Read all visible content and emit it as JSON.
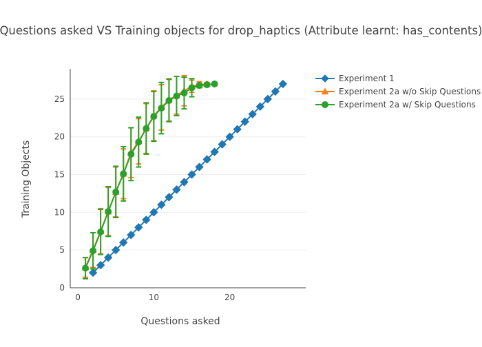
{
  "chart_data": {
    "type": "line",
    "title": "Questions asked VS Training objects for drop_haptics (Attribute learnt: has_contents)",
    "xlabel": "Questions asked",
    "ylabel": "Training Objects",
    "xlim": [
      -1,
      30
    ],
    "ylim": [
      0,
      29
    ],
    "xticks": [
      0,
      10,
      20
    ],
    "yticks": [
      0,
      5,
      10,
      15,
      20,
      25
    ],
    "grid": "horizontal",
    "legend_position": "top-right",
    "series": [
      {
        "name": "Experiment 1",
        "color": "#1f77b4",
        "marker": "diamond",
        "x": [
          2,
          3,
          4,
          5,
          6,
          7,
          8,
          9,
          10,
          11,
          12,
          13,
          14,
          15,
          16,
          17,
          18,
          19,
          20,
          21,
          22,
          23,
          24,
          25,
          26,
          27
        ],
        "y": [
          2,
          3,
          4,
          5,
          6,
          7,
          8,
          9,
          10,
          11,
          12,
          13,
          14,
          15,
          16,
          17,
          18,
          19,
          20,
          21,
          22,
          23,
          24,
          25,
          26,
          27
        ]
      },
      {
        "name": "Experiment 2a w/o Skip Questions",
        "color": "#ff7f0e",
        "marker": "triangle-up",
        "x": [
          1,
          2,
          3,
          4,
          5,
          6,
          7,
          8,
          9,
          10,
          11,
          12,
          13,
          14,
          15,
          16,
          17
        ],
        "y": [
          2.7,
          5.0,
          7.5,
          10.1,
          12.7,
          15.1,
          17.9,
          19.4,
          21.1,
          22.8,
          23.9,
          24.9,
          25.5,
          26.1,
          26.7,
          26.9,
          27.0
        ],
        "error": [
          1.3,
          2.3,
          3.0,
          3.2,
          3.3,
          3.3,
          3.3,
          3.0,
          3.3,
          3.3,
          3.0,
          2.8,
          2.5,
          2.0,
          0.8,
          0.4,
          0.2
        ]
      },
      {
        "name": "Experiment 2a w/ Skip Questions",
        "color": "#2ca02c",
        "marker": "circle",
        "x": [
          1,
          2,
          3,
          4,
          5,
          6,
          7,
          8,
          9,
          10,
          11,
          12,
          13,
          14,
          15,
          16,
          17,
          18
        ],
        "y": [
          2.6,
          4.9,
          7.4,
          10.1,
          12.7,
          15.1,
          17.7,
          19.3,
          21.1,
          22.7,
          23.8,
          24.8,
          25.4,
          25.8,
          26.5,
          26.8,
          26.9,
          27.0
        ],
        "error": [
          1.4,
          2.4,
          3.0,
          3.3,
          3.4,
          3.6,
          3.5,
          3.3,
          3.4,
          3.3,
          3.4,
          2.8,
          2.6,
          2.1,
          1.2,
          0.3,
          0.2,
          0.1
        ]
      }
    ]
  }
}
